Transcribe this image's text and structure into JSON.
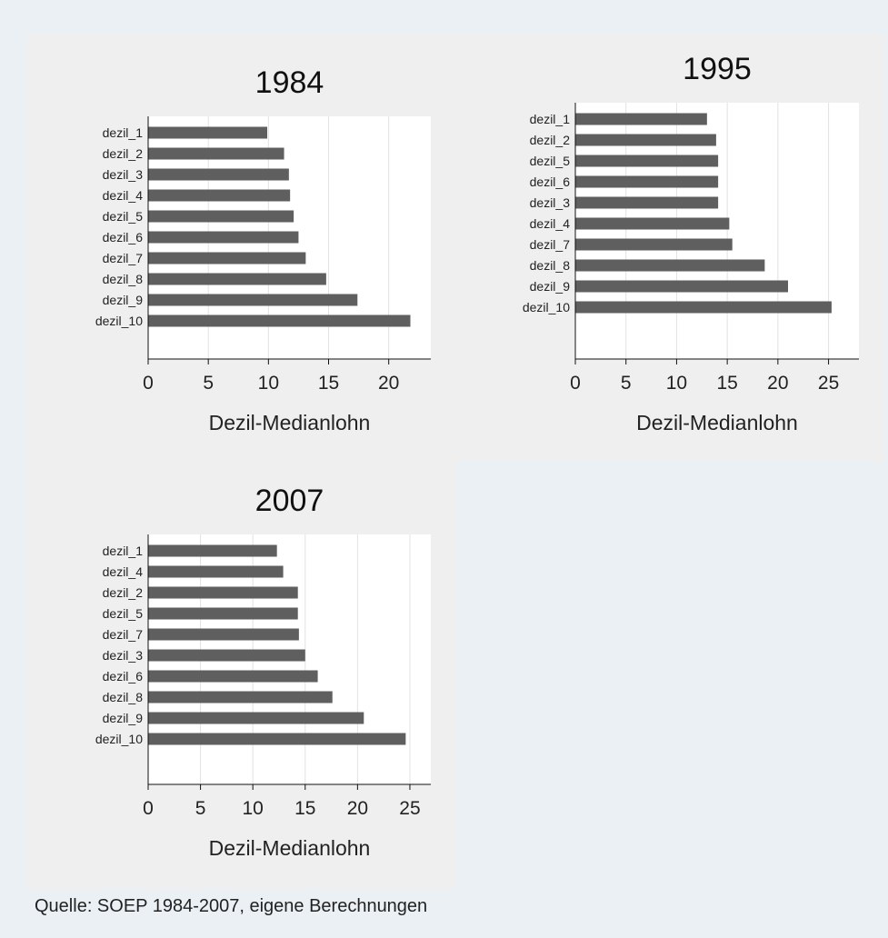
{
  "chart_data": [
    {
      "type": "bar",
      "orientation": "horizontal",
      "title": "1984",
      "xlabel": "Dezil-Medianlohn",
      "ylabel": "",
      "xlim": [
        0,
        23.5
      ],
      "xticks": [
        0,
        5,
        10,
        15,
        20
      ],
      "grid": true,
      "bar_color": "#5f5f5f",
      "categories": [
        "dezil_1",
        "dezil_2",
        "dezil_3",
        "dezil_4",
        "dezil_5",
        "dezil_6",
        "dezil_7",
        "dezil_8",
        "dezil_9",
        "dezil_10"
      ],
      "values": [
        9.9,
        11.3,
        11.7,
        11.8,
        12.1,
        12.5,
        13.1,
        14.8,
        17.4,
        21.8
      ]
    },
    {
      "type": "bar",
      "orientation": "horizontal",
      "title": "1995",
      "xlabel": "Dezil-Medianlohn",
      "ylabel": "",
      "xlim": [
        0,
        28
      ],
      "xticks": [
        0,
        5,
        10,
        15,
        20,
        25
      ],
      "grid": true,
      "bar_color": "#5f5f5f",
      "categories": [
        "dezil_1",
        "dezil_2",
        "dezil_5",
        "dezil_6",
        "dezil_3",
        "dezil_4",
        "dezil_7",
        "dezil_8",
        "dezil_9",
        "dezil_10"
      ],
      "values": [
        13.0,
        13.9,
        14.1,
        14.1,
        14.1,
        15.2,
        15.5,
        18.7,
        21.0,
        25.3
      ]
    },
    {
      "type": "bar",
      "orientation": "horizontal",
      "title": "2007",
      "xlabel": "Dezil-Medianlohn",
      "ylabel": "",
      "xlim": [
        0,
        27
      ],
      "xticks": [
        0,
        5,
        10,
        15,
        20,
        25
      ],
      "grid": true,
      "bar_color": "#5f5f5f",
      "categories": [
        "dezil_1",
        "dezil_4",
        "dezil_2",
        "dezil_5",
        "dezil_7",
        "dezil_3",
        "dezil_6",
        "dezil_8",
        "dezil_9",
        "dezil_10"
      ],
      "values": [
        12.3,
        12.9,
        14.3,
        14.3,
        14.4,
        15.0,
        16.2,
        17.6,
        20.6,
        24.6
      ]
    }
  ],
  "note": "Quelle: SOEP 1984-2007, eigene Berechnungen"
}
